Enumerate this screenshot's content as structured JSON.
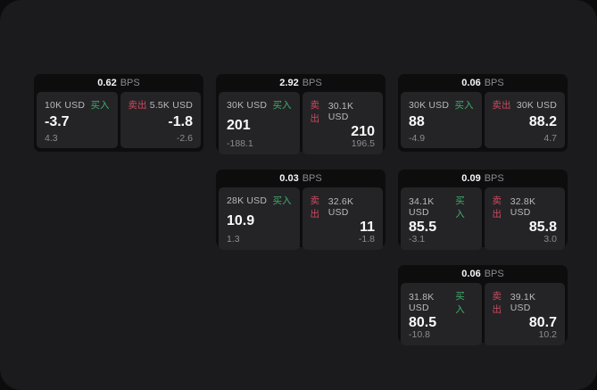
{
  "labels": {
    "bps_unit": "BPS",
    "buy": "买入",
    "sell": "卖出"
  },
  "colors": {
    "screen_bg": "#1b1b1d",
    "card_bg": "#0d0d0e",
    "tile_bg": "#242427",
    "buy_accent": "#3fae6a",
    "sell_accent": "#cb4a5e",
    "value_text": "#fafafa",
    "muted_text": "#8c8c91"
  },
  "cards": [
    {
      "bps": "0.62",
      "buy": {
        "amount": "10K USD",
        "price": "-3.7",
        "delta": "4.3"
      },
      "sell": {
        "amount": "5.5K USD",
        "price": "-1.8",
        "delta": "-2.6"
      }
    },
    {
      "bps": "2.92",
      "buy": {
        "amount": "30K USD",
        "price": "201",
        "delta": "-188.1"
      },
      "sell": {
        "amount": "30.1K USD",
        "price": "210",
        "delta": "196.5"
      }
    },
    {
      "bps": "0.06",
      "buy": {
        "amount": "30K USD",
        "price": "88",
        "delta": "-4.9"
      },
      "sell": {
        "amount": "30K USD",
        "price": "88.2",
        "delta": "4.7"
      }
    },
    {
      "bps": "0.03",
      "buy": {
        "amount": "28K USD",
        "price": "10.9",
        "delta": "1.3"
      },
      "sell": {
        "amount": "32.6K USD",
        "price": "11",
        "delta": "-1.8"
      }
    },
    {
      "bps": "0.09",
      "buy": {
        "amount": "34.1K USD",
        "price": "85.5",
        "delta": "-3.1"
      },
      "sell": {
        "amount": "32.8K USD",
        "price": "85.8",
        "delta": "3.0"
      }
    },
    {
      "bps": "0.06",
      "buy": {
        "amount": "31.8K USD",
        "price": "80.5",
        "delta": "-10.8"
      },
      "sell": {
        "amount": "39.1K USD",
        "price": "80.7",
        "delta": "10.2"
      }
    }
  ]
}
